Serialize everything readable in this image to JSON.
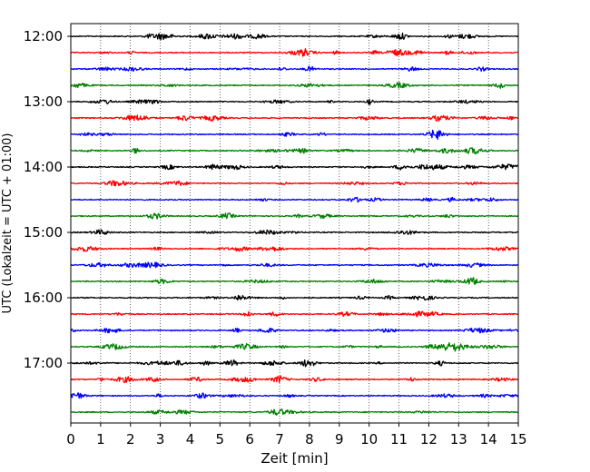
{
  "chart_data": {
    "type": "line",
    "title": "",
    "xlabel": "Zeit  [min]",
    "ylabel": "UTC (Lokalzeit = UTC + 01:00)",
    "xlim": [
      0,
      15
    ],
    "x_ticks": [
      "0",
      "1",
      "2",
      "3",
      "4",
      "5",
      "6",
      "7",
      "8",
      "9",
      "10",
      "11",
      "12",
      "13",
      "14",
      "15"
    ],
    "y_tick_labels": [
      "12:00",
      "13:00",
      "14:00",
      "15:00",
      "16:00",
      "17:00"
    ],
    "trace_start_times": [
      "12:00",
      "12:15",
      "12:30",
      "12:45",
      "13:00",
      "13:15",
      "13:30",
      "13:45",
      "14:00",
      "14:15",
      "14:30",
      "14:45",
      "15:00",
      "15:15",
      "15:30",
      "15:45",
      "16:00",
      "16:15",
      "16:30",
      "16:45",
      "17:00",
      "17:15",
      "17:30",
      "17:45"
    ],
    "trace_interval_min": 15,
    "trace_colors": [
      "#000000",
      "#ff0000",
      "#0000ff",
      "#008000"
    ],
    "vertical_grid": true,
    "grid_style": "dotted"
  }
}
